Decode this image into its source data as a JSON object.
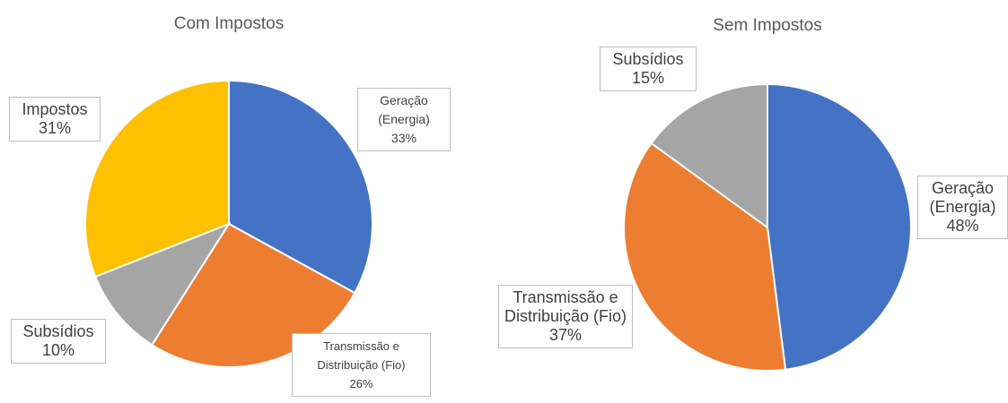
{
  "chart_data": [
    {
      "type": "pie",
      "title": "Com Impostos",
      "categories": [
        "Geração (Energia)",
        "Transmissão e Distribuição (Fio)",
        "Subsídios",
        "Impostos"
      ],
      "values": [
        33,
        26,
        10,
        31
      ],
      "value_labels": [
        "33%",
        "26%",
        "10%",
        "31%"
      ],
      "colors": [
        "#4472c4",
        "#ed7d31",
        "#a5a5a5",
        "#ffc000"
      ]
    },
    {
      "type": "pie",
      "title": "Sem Impostos",
      "categories": [
        "Geração (Energia)",
        "Transmissão e Distribuição (Fio)",
        "Subsídios"
      ],
      "values": [
        48,
        37,
        15
      ],
      "value_labels": [
        "48%",
        "37%",
        "15%"
      ],
      "colors": [
        "#4472c4",
        "#ed7d31",
        "#a5a5a5"
      ]
    }
  ]
}
